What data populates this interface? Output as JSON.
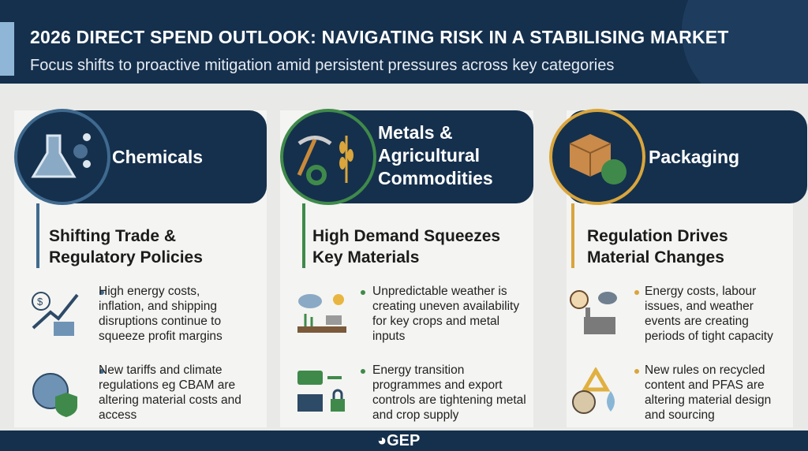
{
  "header": {
    "title": "2026 DIRECT SPEND OUTLOOK: NAVIGATING RISK IN A STABILISING MARKET",
    "subtitle": "Focus shifts to proactive mitigation amid persistent pressures across key categories"
  },
  "columns": [
    {
      "category": "Chemicals",
      "accent": "#3f6a8f",
      "icon": "flask-icon",
      "subheading_1": "Shifting Trade &",
      "subheading_2": "Regulatory Policies",
      "bullets": [
        {
          "icon": "cost-chart-icon",
          "text": "High energy costs, inflation, and shipping disruptions continue to squeeze profit margins"
        },
        {
          "icon": "globe-shield-icon",
          "text": "New tariffs and climate regulations eg CBAM are altering material costs and access"
        }
      ]
    },
    {
      "category": "Metals & Agricultural Commodities",
      "accent": "#3f8a4a",
      "icon": "pickaxe-wheat-icon",
      "subheading_1": "High Demand Squeezes",
      "subheading_2": "Key Materials",
      "bullets": [
        {
          "icon": "weather-crops-icon",
          "text": "Unpredictable weather is creating uneven availability for key crops and metal inputs"
        },
        {
          "icon": "solar-lock-icon",
          "text": "Energy transition programmes and export controls are tightening metal and crop supply"
        }
      ]
    },
    {
      "category": "Packaging",
      "accent": "#d9a53c",
      "icon": "box-recycle-icon",
      "subheading_1": "Regulation Drives",
      "subheading_2": "Material Changes",
      "bullets": [
        {
          "icon": "clock-factory-icon",
          "text": "Energy costs, labour issues, and weather events are creating periods of tight capacity"
        },
        {
          "icon": "recycle-pfas-icon",
          "text": "New rules on recycled content and PFAS are altering material design and sourcing"
        }
      ]
    }
  ],
  "footer": {
    "logo": "GEP"
  }
}
